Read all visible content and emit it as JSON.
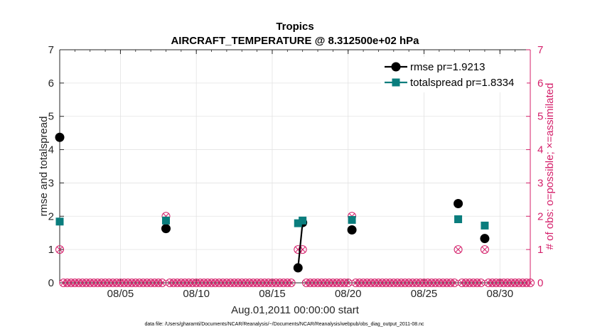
{
  "chart_data": {
    "type": "line",
    "title": "Tropics",
    "subtitle": "AIRCRAFT_TEMPERATURE @ 8.312500e+02 hPa",
    "xlabel": "Aug.01,2011 00:00:00 start",
    "ylabel": "rmse and totalspread",
    "y2label": "# of obs: o=possible; ×=assimilated",
    "xlim": [
      1,
      32
    ],
    "ylim": [
      0,
      7
    ],
    "y2lim": [
      0,
      7
    ],
    "x_ticks": [
      5,
      10,
      15,
      20,
      25,
      30
    ],
    "x_tick_labels": [
      "08/05",
      "08/10",
      "08/15",
      "08/20",
      "08/25",
      "08/30"
    ],
    "y_ticks": [
      0,
      1,
      2,
      3,
      4,
      5,
      6,
      7
    ],
    "y_tick_labels": [
      "0",
      "1",
      "2",
      "3",
      "4",
      "5",
      "6",
      "7"
    ],
    "grid": true,
    "series": [
      {
        "name": "rmse pr=1.9213",
        "color": "#000000",
        "marker": "circle",
        "x": [
          1.0,
          8.0,
          16.7,
          17.0,
          20.25,
          27.25,
          29.0
        ],
        "values": [
          4.37,
          1.63,
          0.45,
          1.81,
          1.59,
          2.38,
          1.33
        ]
      },
      {
        "name": "totalspread pr=1.8334",
        "color": "#0a7d7d",
        "marker": "square",
        "x": [
          1.0,
          8.0,
          16.7,
          17.0,
          20.25,
          27.25,
          29.0
        ],
        "values": [
          1.84,
          1.87,
          1.79,
          1.87,
          1.89,
          1.91,
          1.72
        ]
      }
    ],
    "obs_possible": {
      "x": [
        1.0,
        8.0,
        16.7,
        17.0,
        20.25,
        27.25,
        29.0
      ],
      "values": [
        1,
        2,
        1,
        1,
        2,
        1,
        1
      ]
    },
    "obs_assimilated": {
      "x": [
        1.0,
        8.0,
        16.7,
        17.0,
        20.25,
        27.25,
        29.0
      ],
      "values": [
        1,
        2,
        1,
        1,
        2,
        1,
        1
      ]
    },
    "legend_position": "top-right",
    "obs_color": "#d41f6a",
    "footnote": "data file: /Users/gharamti/Documents/NCAR/Reanalysis/~/Documents/NCAR/Reanalysis/webpub/obs_diag_output_2011-08.nc"
  }
}
